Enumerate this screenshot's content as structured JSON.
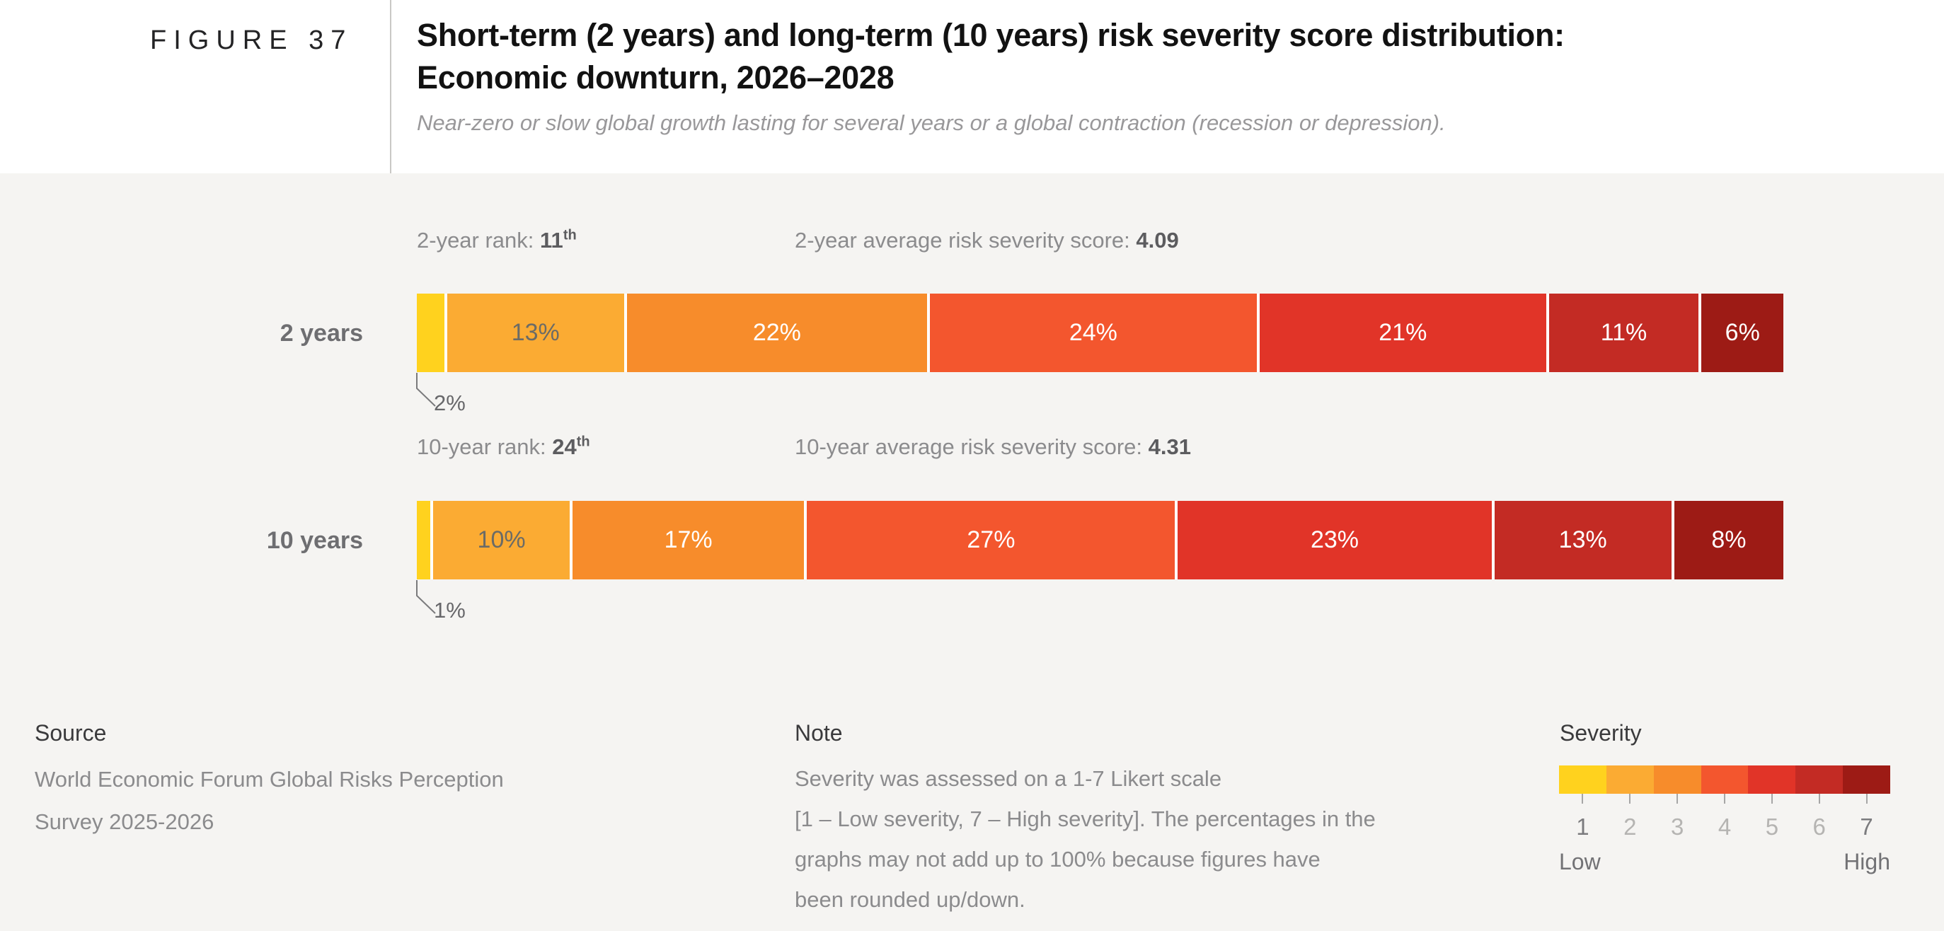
{
  "figure_label": "FIGURE 37",
  "header": {
    "title_line1": "Short-term (2 years) and long-term (10 years) risk severity score distribution:",
    "title_line2": "Economic downturn, 2026–2028",
    "subtitle": "Near-zero or slow global growth lasting for several years or a global contraction (recession or depression)."
  },
  "chart_data": {
    "type": "bar",
    "subtype": "stacked-horizontal-percentage",
    "title": "Short-term (2 years) and long-term (10 years) risk severity score distribution: Economic downturn, 2026–2028",
    "categories": [
      "1",
      "2",
      "3",
      "4",
      "5",
      "6",
      "7"
    ],
    "severity_colors": [
      "#FFD21E",
      "#FBAB33",
      "#F78C2B",
      "#F3562E",
      "#E13428",
      "#C32B24",
      "#9D1B15"
    ],
    "segment_label_colors": [
      null,
      "#6B6B66",
      "#FFFFFF",
      "#FFFFFF",
      "#FFFFFF",
      "#FFFFFF",
      "#FFFFFF"
    ],
    "legend_position": "bottom-right",
    "rows": [
      {
        "label": "2 years",
        "rank_label": "2-year rank:",
        "rank_value": "11",
        "rank_suffix": "th",
        "score_label": "2-year average risk severity score:",
        "score_value": "4.09",
        "values": [
          2,
          13,
          22,
          24,
          21,
          11,
          6
        ],
        "callout_label": "2%"
      },
      {
        "label": "10 years",
        "rank_label": "10-year rank:",
        "rank_value": "24",
        "rank_suffix": "th",
        "score_label": "10-year average risk severity score:",
        "score_value": "4.31",
        "values": [
          1,
          10,
          17,
          27,
          23,
          13,
          8
        ],
        "callout_label": "1%"
      }
    ]
  },
  "footer": {
    "source_heading": "Source",
    "source_lines": [
      "World Economic Forum Global Risks Perception",
      "Survey 2025-2026"
    ],
    "note_heading": "Note",
    "note_lines": [
      "Severity was assessed on a 1-7 Likert scale",
      "[1 – Low severity, 7 – High severity]. The percentages in the",
      "graphs may not add up to 100% because figures have",
      "been rounded up/down."
    ],
    "legend": {
      "heading": "Severity",
      "ticks": [
        "1",
        "2",
        "3",
        "4",
        "5",
        "6",
        "7"
      ],
      "low_label": "Low",
      "high_label": "High"
    }
  },
  "colors": {
    "panel_bg": "#F5F4F2",
    "header_bg": "#FFFFFF",
    "legend_num_end": "#7B7B7E",
    "legend_num_mid": "#B5B4B2",
    "callout_line": "#7A7A7C"
  }
}
